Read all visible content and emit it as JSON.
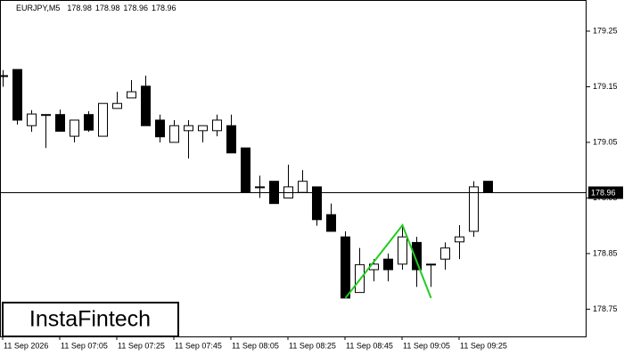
{
  "chart_data": {
    "type": "candlestick",
    "symbol": "EURJPY,M5",
    "header_values": [
      178.98,
      178.98,
      178.96,
      178.96
    ],
    "categories": [
      "11 Sep 2026",
      null,
      null,
      null,
      "11 Sep 07:05",
      null,
      null,
      null,
      "11 Sep 07:25",
      null,
      null,
      null,
      "11 Sep 07:45",
      null,
      null,
      null,
      "11 Sep 08:05",
      null,
      null,
      null,
      "11 Sep 08:25",
      null,
      null,
      null,
      "11 Sep 08:45",
      null,
      null,
      null,
      "11 Sep 09:05",
      null,
      null,
      null,
      "11 Sep 09:25",
      null,
      null
    ],
    "open": [
      179.17,
      179.181,
      179.08,
      179.1,
      179.1,
      179.061,
      179.1,
      179.061,
      179.111,
      179.13,
      179.151,
      179.09,
      179.05,
      179.071,
      179.071,
      179.071,
      179.08,
      179.04,
      178.97,
      178.98,
      178.95,
      178.96,
      178.97,
      178.92,
      178.88,
      178.78,
      178.821,
      178.84,
      178.831,
      178.87,
      178.831,
      178.84,
      178.871,
      178.89,
      178.98
    ],
    "high": [
      179.18,
      179.181,
      179.108,
      179.1,
      179.109,
      179.09,
      179.106,
      179.12,
      179.141,
      179.162,
      179.17,
      179.1,
      179.09,
      179.09,
      179.08,
      179.1,
      179.1,
      179.04,
      178.99,
      178.98,
      179.01,
      179.0,
      178.97,
      178.94,
      178.89,
      178.86,
      178.84,
      178.85,
      178.901,
      178.88,
      178.831,
      178.87,
      178.901,
      178.98,
      178.98
    ],
    "low": [
      179.15,
      179.082,
      179.069,
      179.04,
      179.07,
      179.05,
      179.069,
      179.061,
      179.111,
      179.13,
      179.08,
      179.05,
      179.05,
      179.021,
      179.05,
      179.061,
      179.031,
      178.96,
      178.95,
      178.94,
      178.95,
      178.96,
      178.9,
      178.89,
      178.77,
      178.78,
      178.8,
      178.8,
      178.821,
      178.79,
      178.79,
      178.821,
      178.84,
      178.88,
      178.96
    ],
    "close": [
      179.17,
      179.09,
      179.101,
      179.1,
      179.07,
      179.09,
      179.072,
      179.12,
      179.12,
      179.141,
      179.08,
      179.06,
      179.08,
      179.08,
      179.08,
      179.09,
      179.031,
      178.96,
      178.97,
      178.94,
      178.97,
      178.98,
      178.911,
      178.89,
      178.77,
      178.83,
      178.831,
      178.821,
      178.88,
      178.821,
      178.831,
      178.86,
      178.88,
      178.97,
      178.96
    ],
    "ylim": [
      178.701,
      179.306
    ],
    "yticks": [
      179.25,
      179.15,
      179.05,
      178.95,
      178.85,
      178.75
    ],
    "last_price": 178.96,
    "pattern_line": {
      "color": "#22cc22",
      "x_index": [
        24,
        28,
        30
      ],
      "values": [
        178.77,
        178.901,
        178.77
      ]
    },
    "logo": "InstaFintech"
  }
}
